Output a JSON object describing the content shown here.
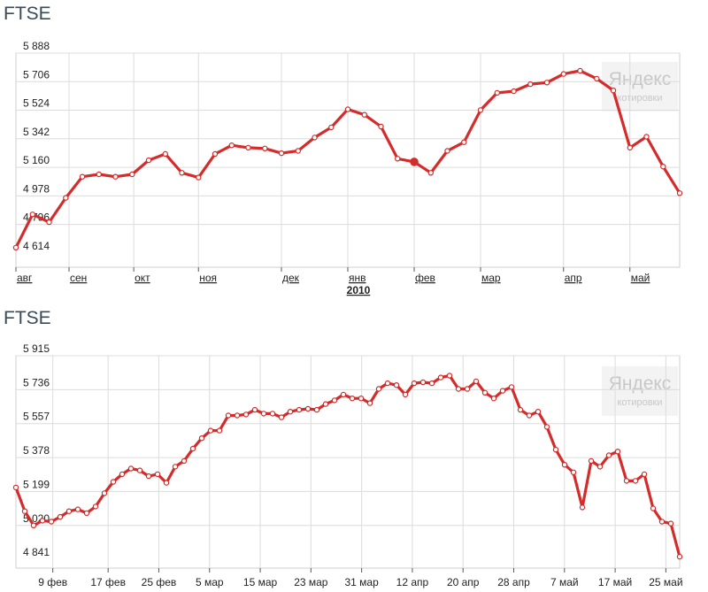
{
  "chart_data": [
    {
      "type": "line",
      "title": "FTSE",
      "year_label": "2010",
      "watermark": {
        "brand": "Яндекс",
        "sub": "котировки"
      },
      "line_color": "#d42b2b",
      "yticks": [
        4614,
        4796,
        4978,
        5160,
        5342,
        5524,
        5706,
        5888
      ],
      "ytick_labels": [
        "4 614",
        "4 796",
        "4 978",
        "5 160",
        "5 342",
        "5 524",
        "5 706",
        "5 888"
      ],
      "ylim": [
        4523,
        5888
      ],
      "xlim": [
        0,
        40
      ],
      "xticks": [
        {
          "label": "авг",
          "x": 0
        },
        {
          "label": "сен",
          "x": 3.2
        },
        {
          "label": "окт",
          "x": 7.1
        },
        {
          "label": "ноя",
          "x": 11
        },
        {
          "label": "дек",
          "x": 16
        },
        {
          "label": "янв",
          "x": 20
        },
        {
          "label": "фев",
          "x": 24
        },
        {
          "label": "мар",
          "x": 28
        },
        {
          "label": "апр",
          "x": 33
        },
        {
          "label": "май",
          "x": 37
        }
      ],
      "y": [
        4648,
        4860,
        4810,
        4965,
        5100,
        5115,
        5100,
        5115,
        5205,
        5245,
        5125,
        5095,
        5245,
        5300,
        5285,
        5280,
        5250,
        5265,
        5350,
        5415,
        5530,
        5495,
        5420,
        5215,
        5195,
        5125,
        5265,
        5320,
        5525,
        5635,
        5645,
        5690,
        5700,
        5755,
        5775,
        5725,
        5650,
        5285,
        5355,
        5165,
        4995
      ],
      "highlight_index": 24
    },
    {
      "type": "line",
      "title": "FTSE",
      "watermark": {
        "brand": "Яндекс",
        "sub": "котировки"
      },
      "line_color": "#d42b2b",
      "yticks": [
        4841,
        5020,
        5199,
        5378,
        5557,
        5736,
        5915
      ],
      "ytick_labels": [
        "4 841",
        "5 020",
        "5 199",
        "5 378",
        "5 557",
        "5 736",
        "5 915"
      ],
      "ylim": [
        4795,
        5915
      ],
      "xlim": [
        0,
        72
      ],
      "xticks": [
        {
          "label": "9 фев",
          "x": 4
        },
        {
          "label": "17 фев",
          "x": 10
        },
        {
          "label": "25 фев",
          "x": 15.5
        },
        {
          "label": "5 мар",
          "x": 21
        },
        {
          "label": "15 мар",
          "x": 26.5
        },
        {
          "label": "23 мар",
          "x": 32
        },
        {
          "label": "31 мар",
          "x": 37.5
        },
        {
          "label": "12 апр",
          "x": 43
        },
        {
          "label": "20 апр",
          "x": 48.5
        },
        {
          "label": "28 апр",
          "x": 54
        },
        {
          "label": "7 май",
          "x": 59.5
        },
        {
          "label": "17 май",
          "x": 65
        },
        {
          "label": "25 май",
          "x": 70.5
        }
      ],
      "y": [
        5220,
        5095,
        5020,
        5045,
        5040,
        5065,
        5095,
        5105,
        5085,
        5120,
        5190,
        5250,
        5290,
        5320,
        5310,
        5280,
        5290,
        5245,
        5330,
        5360,
        5425,
        5480,
        5520,
        5520,
        5600,
        5600,
        5605,
        5630,
        5610,
        5610,
        5590,
        5620,
        5630,
        5635,
        5630,
        5660,
        5680,
        5710,
        5690,
        5690,
        5665,
        5740,
        5770,
        5760,
        5710,
        5770,
        5775,
        5770,
        5800,
        5810,
        5740,
        5740,
        5780,
        5720,
        5690,
        5730,
        5750,
        5630,
        5600,
        5620,
        5540,
        5420,
        5340,
        5300,
        5115,
        5360,
        5330,
        5390,
        5410,
        5255,
        5255,
        5290,
        5110,
        5040,
        5030,
        4855
      ],
      "highlight_index": -1
    }
  ]
}
